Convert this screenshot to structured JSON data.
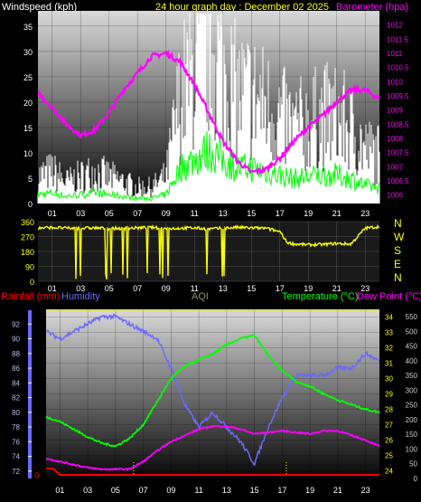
{
  "colors": {
    "background": "#000000",
    "header_text": "#ffffff",
    "title": "#ffff00",
    "barometer": "#ff00ff",
    "wind_gust": "#ffffff",
    "wind_avg": "#00ff00",
    "wind_dir": "#ffff00",
    "rain": "#ff0000",
    "humidity": "#6a6aff",
    "aqi": "#8f8f5a",
    "temperature": "#00ff00",
    "dew_point": "#ff00ff",
    "temp_axis": "#ffff00",
    "aqi_axis": "#cccccc"
  },
  "chart_data": [
    {
      "type": "line",
      "title": "24 hour graph day : December 02 2025",
      "left_label": "Windspeed (kph)",
      "right_label": "Barometer (hpa)",
      "x_ticks": [
        "01",
        "03",
        "05",
        "07",
        "09",
        "11",
        "13",
        "15",
        "17",
        "19",
        "21",
        "23"
      ],
      "y_left_range": [
        0,
        38
      ],
      "y_left_ticks": [
        0,
        5,
        10,
        15,
        20,
        25,
        30,
        35
      ],
      "y_right_range": [
        1005.7,
        1012.5
      ],
      "y_right_ticks": [
        "1006",
        "1006.5",
        "1007",
        "1007.5",
        "1008",
        "1008.5",
        "1009",
        "1009.5",
        "1010",
        "1010.5",
        "1011",
        "1011.5",
        "1012"
      ],
      "grid": true,
      "series": [
        {
          "name": "Windspeed (kph)",
          "x": [
            0,
            1,
            2,
            3,
            4,
            5,
            6,
            7,
            8,
            9,
            10,
            11,
            12,
            13,
            14,
            15,
            16,
            17,
            18,
            19,
            20,
            21,
            22,
            23,
            24
          ],
          "values": [
            5,
            6,
            4,
            5,
            6,
            5,
            4,
            3,
            3,
            5,
            20,
            25,
            30,
            25,
            20,
            20,
            18,
            16,
            14,
            15,
            16,
            16,
            14,
            10,
            9
          ]
        },
        {
          "name": "Barometer (hpa)",
          "x": [
            0,
            1,
            2,
            3,
            4,
            5,
            6,
            7,
            8,
            9,
            10,
            11,
            12,
            13,
            14,
            15,
            16,
            17,
            18,
            19,
            20,
            21,
            22,
            23,
            24
          ],
          "values": [
            1009.6,
            1009.1,
            1008.5,
            1008.1,
            1008.3,
            1008.9,
            1009.7,
            1010.3,
            1010.9,
            1011.0,
            1010.7,
            1009.9,
            1008.9,
            1007.9,
            1007.2,
            1006.8,
            1006.9,
            1007.3,
            1007.9,
            1008.4,
            1008.8,
            1009.3,
            1009.7,
            1009.7,
            1009.4
          ]
        }
      ]
    },
    {
      "type": "line",
      "title": "",
      "right_labels": [
        "N",
        "W",
        "S",
        "E",
        "N"
      ],
      "y_range": [
        0,
        360
      ],
      "y_ticks": [
        "0",
        "90",
        "180",
        "270",
        "360"
      ],
      "x_ticks": [
        "01",
        "03",
        "05",
        "07",
        "09",
        "11",
        "13",
        "15",
        "17",
        "19",
        "21",
        "23"
      ],
      "series": [
        {
          "name": "",
          "x": [
            0,
            1,
            2,
            3,
            4,
            5,
            6,
            7,
            8,
            9,
            10,
            11,
            12,
            13,
            14,
            15,
            16,
            17,
            17.5,
            18,
            19,
            20,
            21,
            22,
            23,
            24
          ],
          "values": [
            320,
            325,
            320,
            320,
            322,
            318,
            320,
            322,
            325,
            318,
            320,
            322,
            315,
            320,
            325,
            322,
            320,
            300,
            235,
            225,
            220,
            222,
            228,
            225,
            320,
            330
          ]
        }
      ]
    },
    {
      "type": "line",
      "left_label_1": "Rainfall (mm)",
      "left_label_2": "Humidity",
      "center_label": "AQI",
      "right_label_1": "Temperature (°C)",
      "right_label_2": "Dew Point (°C)",
      "x_ticks": [
        "01",
        "03",
        "05",
        "07",
        "09",
        "11",
        "13",
        "15",
        "17",
        "19",
        "21",
        "23"
      ],
      "humidity_range": [
        71,
        94
      ],
      "humidity_ticks": [
        72,
        74,
        76,
        78,
        80,
        82,
        84,
        86,
        88,
        90,
        92
      ],
      "rain_ticks": [
        "0"
      ],
      "temp_range": [
        23.5,
        34.5
      ],
      "temp_ticks": [
        24,
        25,
        26,
        27,
        28,
        29,
        30,
        31,
        32,
        33,
        34
      ],
      "aqi_range": [
        0,
        575
      ],
      "aqi_ticks": [
        0,
        50,
        100,
        150,
        200,
        250,
        300,
        350,
        400,
        450,
        500,
        550
      ],
      "grid": true,
      "series": [
        {
          "name": "Humidity",
          "x": [
            0,
            1,
            2,
            3,
            4,
            5,
            6,
            7,
            8,
            9,
            10,
            11,
            12,
            13,
            14,
            15,
            16,
            17,
            18,
            19,
            20,
            21,
            22,
            23,
            24
          ],
          "values": [
            91,
            90,
            91,
            92,
            93,
            93,
            92,
            91,
            90,
            86,
            81,
            78,
            80,
            78,
            76,
            73,
            78,
            82,
            85,
            85,
            85,
            86,
            86,
            88,
            87
          ]
        },
        {
          "name": "Temperature (°C)",
          "x": [
            0,
            1,
            2,
            3,
            4,
            5,
            6,
            7,
            8,
            9,
            10,
            11,
            12,
            13,
            14,
            15,
            16,
            17,
            18,
            19,
            20,
            21,
            22,
            23,
            24
          ],
          "values": [
            27.5,
            27.2,
            26.7,
            26.2,
            25.8,
            25.6,
            26.1,
            27.0,
            28.5,
            30.0,
            30.8,
            31.2,
            31.6,
            32.2,
            32.6,
            32.8,
            31.5,
            30.5,
            29.8,
            29.5,
            29.0,
            28.6,
            28.3,
            28.0,
            27.8
          ]
        },
        {
          "name": "Dew Point (°C)",
          "x": [
            0,
            1,
            2,
            3,
            4,
            5,
            6,
            7,
            8,
            9,
            10,
            11,
            12,
            13,
            14,
            15,
            16,
            17,
            18,
            19,
            20,
            21,
            22,
            23,
            24
          ],
          "values": [
            24.8,
            24.6,
            24.4,
            24.2,
            24.1,
            24.1,
            24.1,
            24.6,
            25.3,
            25.9,
            26.3,
            26.7,
            26.9,
            26.9,
            26.7,
            26.4,
            26.5,
            26.6,
            26.5,
            26.4,
            26.6,
            26.6,
            26.3,
            26.0,
            25.6
          ]
        },
        {
          "name": "Rainfall (mm)",
          "x": [
            0,
            0.5,
            1,
            24
          ],
          "values": [
            0.5,
            0.5,
            0,
            0
          ]
        }
      ]
    }
  ]
}
